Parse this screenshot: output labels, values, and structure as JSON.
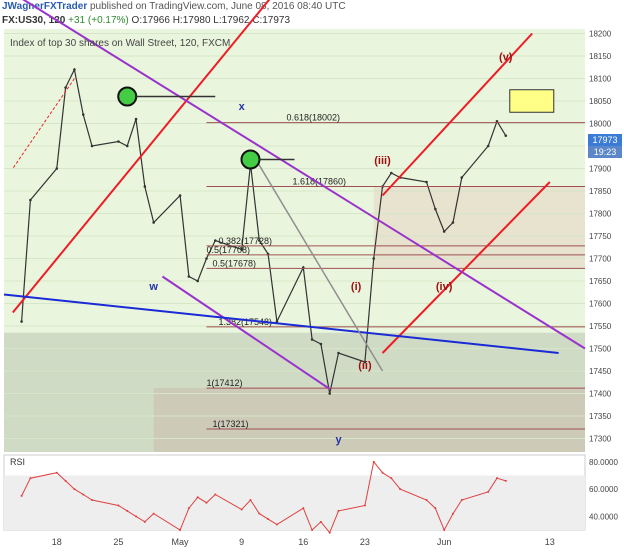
{
  "header": {
    "author": "JWagnerFXTrader",
    "published": "published on TradingView.com, June 08, 2016 08:40 UTC"
  },
  "symbol_bar": {
    "symbol": "FX:US30, 120",
    "change": "+31 (+0.17%)",
    "open": "O:17966",
    "high": "H:17980",
    "low": "L:17962",
    "close": "C:17973"
  },
  "pane_title": "Index of top 30 shares on Wall Street, 120, FXCM",
  "price_badges": {
    "last": "17973",
    "countdown": "19:23"
  },
  "colors": {
    "background_pane": "#eaf5dd",
    "red_channel": "#ee1c25",
    "purple_channel": "#9933cc",
    "blue_trend": "#1a2ad6",
    "grey_channel": "#8f8f8f",
    "wave_label": "#a01010",
    "target_box": "#ffff88"
  },
  "chart_data": [
    {
      "type": "line",
      "series": [
        {
          "x": [
            "2016-04-14",
            "2016-04-15",
            "2016-04-18",
            "2016-04-19",
            "2016-04-20",
            "2016-04-21",
            "2016-04-22",
            "2016-04-25",
            "2016-04-26",
            "2016-04-27",
            "2016-04-28",
            "2016-04-29",
            "2016-05-02",
            "2016-05-03",
            "2016-05-04",
            "2016-05-05",
            "2016-05-06",
            "2016-05-09",
            "2016-05-10",
            "2016-05-11",
            "2016-05-12",
            "2016-05-13",
            "2016-05-16",
            "2016-05-17",
            "2016-05-18",
            "2016-05-19",
            "2016-05-20",
            "2016-05-23",
            "2016-05-24",
            "2016-05-25",
            "2016-05-26",
            "2016-05-27",
            "2016-05-30",
            "2016-05-31",
            "2016-06-01",
            "2016-06-02",
            "2016-06-03",
            "2016-06-06",
            "2016-06-07",
            "2016-06-08"
          ],
          "values": [
            17560,
            17830,
            17900,
            18080,
            18120,
            18020,
            17950,
            17960,
            17950,
            18010,
            17860,
            17780,
            17840,
            17660,
            17650,
            17700,
            17740,
            17720,
            17910,
            17740,
            17710,
            17560,
            17680,
            17520,
            17510,
            17400,
            17490,
            17470,
            17700,
            17860,
            17890,
            17880,
            17870,
            17810,
            17760,
            17780,
            17880,
            17950,
            18005,
            17973
          ]
        }
      ],
      "ylim": [
        17270,
        18210
      ],
      "y_ticks": [
        "18200",
        "18150",
        "18100",
        "18050",
        "18000",
        "17950",
        "17900",
        "17850",
        "17800",
        "17750",
        "17700",
        "17650",
        "17600",
        "17550",
        "17500",
        "17450",
        "17400",
        "17350",
        "17300"
      ],
      "x_tick_labels": [
        "18",
        "25",
        "May",
        "9",
        "16",
        "23",
        "Jun",
        "13"
      ],
      "levels": [
        {
          "label": "0.618(18002)",
          "value": 18002
        },
        {
          "label": "1.618(17860)",
          "value": 17860
        },
        {
          "label": "0.382(17728)",
          "value": 17728
        },
        {
          "label": "0.5(17708)",
          "value": 17708
        },
        {
          "label": "0.5(17678)",
          "value": 17678
        },
        {
          "label": "1.382(17548)",
          "value": 17548
        },
        {
          "label": "1(17412)",
          "value": 17412
        },
        {
          "label": "1(17321)",
          "value": 17321
        }
      ],
      "wave_labels": [
        "(v)",
        "(iii)",
        "(iv)",
        "(i)",
        "(ii)",
        "x",
        "w",
        "y"
      ]
    },
    {
      "type": "line",
      "title": "RSI",
      "series": [
        {
          "x": [
            "2016-04-14",
            "2016-04-15",
            "2016-04-18",
            "2016-04-19",
            "2016-04-20",
            "2016-04-21",
            "2016-04-22",
            "2016-04-25",
            "2016-04-26",
            "2016-04-27",
            "2016-04-28",
            "2016-04-29",
            "2016-05-02",
            "2016-05-03",
            "2016-05-04",
            "2016-05-05",
            "2016-05-06",
            "2016-05-09",
            "2016-05-10",
            "2016-05-11",
            "2016-05-12",
            "2016-05-13",
            "2016-05-16",
            "2016-05-17",
            "2016-05-18",
            "2016-05-19",
            "2016-05-20",
            "2016-05-23",
            "2016-05-24",
            "2016-05-25",
            "2016-05-26",
            "2016-05-27",
            "2016-05-30",
            "2016-05-31",
            "2016-06-01",
            "2016-06-02",
            "2016-06-03",
            "2016-06-06",
            "2016-06-07",
            "2016-06-08"
          ],
          "values": [
            55,
            68,
            72,
            66,
            60,
            56,
            52,
            48,
            44,
            40,
            36,
            42,
            30,
            46,
            54,
            50,
            56,
            45,
            52,
            42,
            38,
            34,
            46,
            30,
            36,
            28,
            44,
            48,
            80,
            72,
            68,
            60,
            52,
            46,
            30,
            42,
            52,
            58,
            68,
            66
          ]
        }
      ],
      "ylim": [
        30,
        85
      ],
      "y_ticks": [
        "80.0000",
        "60.0000",
        "40.0000"
      ]
    }
  ]
}
